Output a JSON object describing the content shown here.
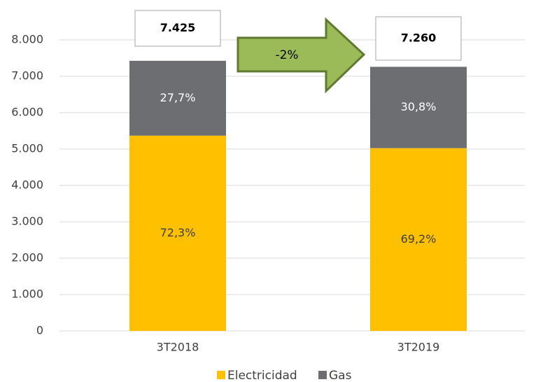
{
  "chart_data": {
    "type": "stacked_bar",
    "categories": [
      "3T2018",
      "3T2019"
    ],
    "series": [
      {
        "name": "Electricidad",
        "color": "#ffc000",
        "values": [
          5368,
          5024
        ],
        "percentages": [
          {
            "value": 72.3,
            "label": "72,3%"
          },
          {
            "value": 69.2,
            "label": "69,2%"
          }
        ]
      },
      {
        "name": "Gas",
        "color": "#6d6e71",
        "values": [
          2057,
          2236
        ],
        "percentages": [
          {
            "value": 27.7,
            "label": "27,7%"
          },
          {
            "value": 30.8,
            "label": "30,8%"
          }
        ]
      }
    ],
    "totals": [
      {
        "value": 7425,
        "label": "7.425"
      },
      {
        "value": 7260,
        "label": "7.260"
      }
    ],
    "change_label": "-2%",
    "ylim": [
      0,
      8000
    ],
    "yticks": [
      0,
      {
        "value": 1000,
        "label": "1.000"
      },
      {
        "value": 2000,
        "label": "2.000"
      },
      {
        "value": 3000,
        "label": "3.000"
      },
      {
        "value": 4000,
        "label": "4.000"
      },
      {
        "value": 5000,
        "label": "5.000"
      },
      {
        "value": 6000,
        "label": "6.000"
      },
      {
        "value": 7000,
        "label": "7.000"
      },
      {
        "value": 8000,
        "label": "8.000"
      }
    ],
    "grid": true,
    "legend": "bottom"
  }
}
